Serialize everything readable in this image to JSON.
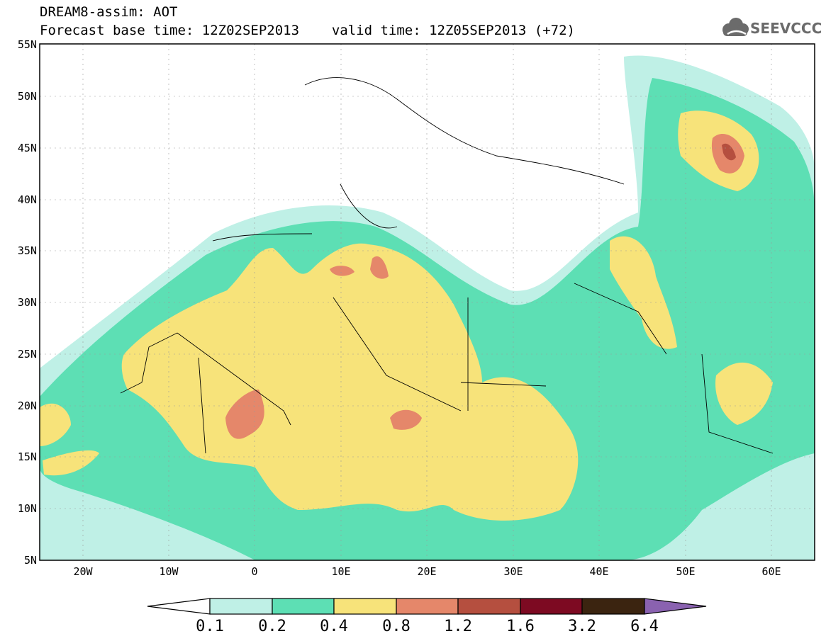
{
  "header": {
    "title": "DREAM8-assim: AOT",
    "subtitle_base": "Forecast base time: 12Z02SEP2013",
    "subtitle_valid": "valid time: 12Z05SEP2013 (+72)",
    "logo_text": "SEEVCCC",
    "logo_icon": "cloud-icon"
  },
  "map": {
    "lon_range": [
      -25,
      65
    ],
    "lat_range": [
      5,
      55
    ],
    "lat_labels": [
      "55N",
      "50N",
      "45N",
      "40N",
      "35N",
      "30N",
      "25N",
      "20N",
      "15N",
      "10N",
      "5N"
    ],
    "lat_values": [
      55,
      50,
      45,
      40,
      35,
      30,
      25,
      20,
      15,
      10,
      5
    ],
    "lon_labels": [
      "20W",
      "10W",
      "0",
      "10E",
      "20E",
      "30E",
      "40E",
      "50E",
      "60E"
    ],
    "lon_values": [
      -20,
      -10,
      0,
      10,
      20,
      30,
      40,
      50,
      60
    ]
  },
  "colorbar": {
    "colors": [
      "#ffffff",
      "#bff0e6",
      "#5ddfb4",
      "#f7e37a",
      "#e5876a",
      "#b54f3f",
      "#7d0a22",
      "#3b2410",
      "#8a62b0"
    ],
    "labels": [
      "0.1",
      "0.2",
      "0.4",
      "0.8",
      "1.2",
      "1.6",
      "3.2",
      "6.4"
    ]
  }
}
